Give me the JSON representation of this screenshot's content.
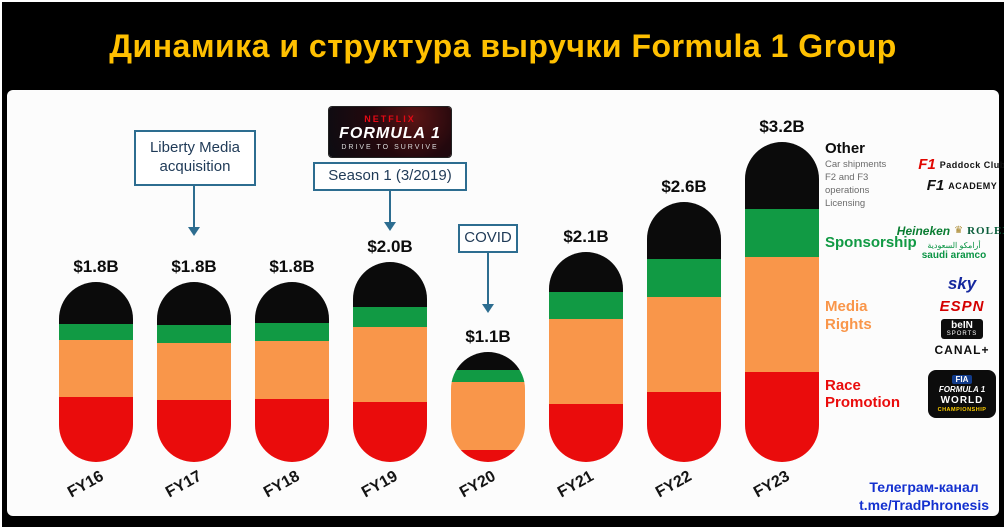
{
  "title": "Динамика и структура выручки Formula 1 Group",
  "chart_data": {
    "type": "bar",
    "stacked": true,
    "unit": "USD billions",
    "grid": false,
    "legend_position": "right",
    "categories": [
      "FY16",
      "FY17",
      "FY18",
      "FY19",
      "FY20",
      "FY21",
      "FY22",
      "FY23"
    ],
    "totals": [
      "$1.8B",
      "$1.8B",
      "$1.8B",
      "$2.0B",
      "$1.1B",
      "$2.1B",
      "$2.6B",
      "$3.2B"
    ],
    "ylim": [
      0,
      3.4
    ],
    "series": [
      {
        "name": "Race Promotion",
        "color": "#ea0c0c",
        "values": [
          0.65,
          0.62,
          0.63,
          0.6,
          0.12,
          0.58,
          0.7,
          0.9
        ]
      },
      {
        "name": "Media Rights",
        "color": "#f9964a",
        "values": [
          0.57,
          0.57,
          0.58,
          0.75,
          0.68,
          0.85,
          0.95,
          1.15
        ]
      },
      {
        "name": "Sponsorship",
        "color": "#119a44",
        "values": [
          0.16,
          0.18,
          0.18,
          0.2,
          0.12,
          0.27,
          0.38,
          0.48
        ]
      },
      {
        "name": "Other",
        "color": "#0b0b0b",
        "values": [
          0.42,
          0.43,
          0.41,
          0.45,
          0.18,
          0.4,
          0.57,
          0.67
        ]
      }
    ]
  },
  "annotations": {
    "liberty": "Liberty Media acquisition",
    "netflix_brand": "NETFLIX",
    "netflix_title": "FORMULA 1",
    "netflix_subtitle": "DRIVE TO SURVIVE",
    "season": "Season 1 (3/2019)",
    "covid": "COVID"
  },
  "legend": {
    "other_sub": [
      "Car shipments",
      "F2 and F3 operations",
      "Licensing"
    ]
  },
  "logos": {
    "f1_paddock_mark": "F1",
    "f1_paddock_text": "Paddock Club",
    "f1_academy_mark": "F1",
    "f1_academy_text": "ACADEMY",
    "heineken": "Heineken",
    "rolex_crown": "♛",
    "rolex": "ROLEX",
    "aramco_arabic": "أرامكو السعودية",
    "aramco": "saudi aramco",
    "sky": "sky",
    "espn": "ESPN",
    "bein": "beIN",
    "bein_sub": "SPORTS",
    "canal": "CANAL+",
    "fia_mark": "FIA",
    "fia_f1": "FORMULA 1",
    "fia_world": "WORLD",
    "fia_championship": "CHAMPIONSHIP"
  },
  "footer": {
    "line1": "Телеграм-канал",
    "line2": "t.me/TradPhronesis"
  }
}
